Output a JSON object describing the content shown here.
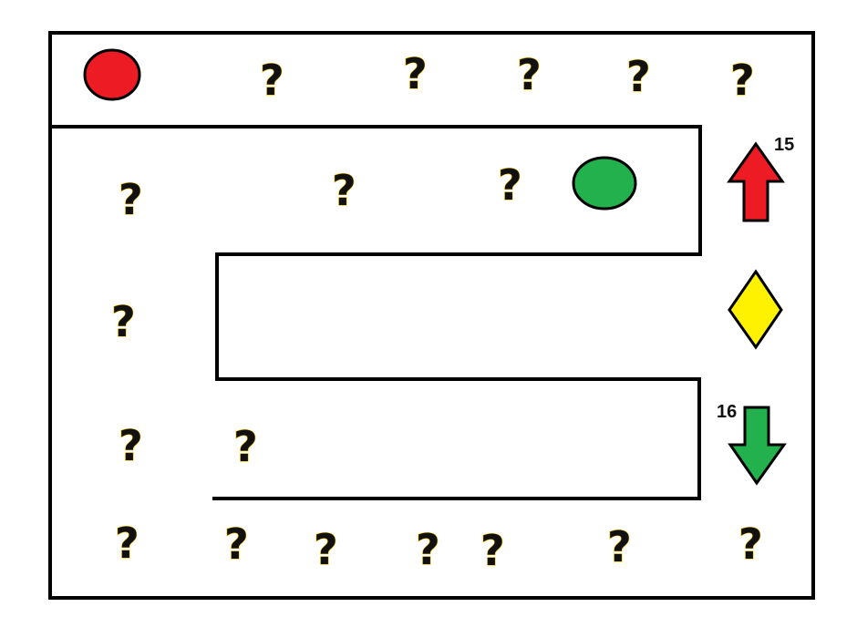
{
  "board": {
    "background": "#ffffff",
    "line_color": "#000000"
  },
  "tokens": {
    "start": {
      "name": "red-circle",
      "color": "#ed1c24"
    },
    "goal": {
      "name": "green-circle",
      "color": "#22b14c"
    }
  },
  "controls": {
    "up_arrow": {
      "color": "#ed1c24",
      "label": "15"
    },
    "diamond": {
      "color": "#fff200"
    },
    "down_arrow": {
      "color": "#22b14c",
      "label": "16"
    }
  },
  "mystery_tiles": [
    {
      "text": "?"
    },
    {
      "text": "?"
    },
    {
      "text": "?"
    },
    {
      "text": "?"
    },
    {
      "text": "?"
    },
    {
      "text": "?"
    },
    {
      "text": "?"
    },
    {
      "text": "?"
    },
    {
      "text": "?"
    },
    {
      "text": "?"
    },
    {
      "text": "?"
    },
    {
      "text": "?"
    },
    {
      "text": "?"
    },
    {
      "text": "?"
    },
    {
      "text": "?"
    },
    {
      "text": "?"
    },
    {
      "text": "?"
    },
    {
      "text": "?"
    }
  ]
}
